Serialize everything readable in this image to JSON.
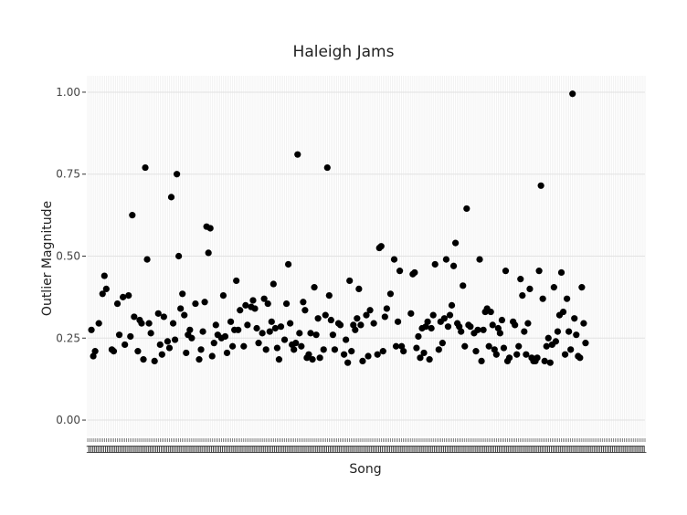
{
  "chart_data": {
    "type": "scatter",
    "title": "Haleigh Jams",
    "xlabel": "Song",
    "ylabel": "Outlier Magnitude",
    "ylim": [
      -0.05,
      1.05
    ],
    "yticks": [
      {
        "value": 0.0,
        "label": "0.00"
      },
      {
        "value": 0.25,
        "label": "0.25"
      },
      {
        "value": 0.5,
        "label": "0.50"
      },
      {
        "value": 0.75,
        "label": "0.75"
      },
      {
        "value": 1.0,
        "label": "1.00"
      }
    ],
    "xlim": [
      0,
      300
    ],
    "x_category_count": 300,
    "x_tick_label_sample": "1",
    "grid": true,
    "legend": "none",
    "series": [
      {
        "name": "songs",
        "color": "#000000",
        "points": [
          [
            2,
            0.275
          ],
          [
            3,
            0.195
          ],
          [
            4,
            0.21
          ],
          [
            6,
            0.295
          ],
          [
            8,
            0.385
          ],
          [
            9,
            0.44
          ],
          [
            10,
            0.4
          ],
          [
            13,
            0.215
          ],
          [
            14,
            0.21
          ],
          [
            16,
            0.355
          ],
          [
            17,
            0.26
          ],
          [
            19,
            0.375
          ],
          [
            20,
            0.23
          ],
          [
            22,
            0.38
          ],
          [
            23,
            0.255
          ],
          [
            24,
            0.625
          ],
          [
            25,
            0.315
          ],
          [
            27,
            0.21
          ],
          [
            28,
            0.305
          ],
          [
            29,
            0.295
          ],
          [
            30,
            0.185
          ],
          [
            31,
            0.77
          ],
          [
            32,
            0.49
          ],
          [
            33,
            0.295
          ],
          [
            34,
            0.265
          ],
          [
            36,
            0.18
          ],
          [
            38,
            0.325
          ],
          [
            39,
            0.23
          ],
          [
            40,
            0.2
          ],
          [
            41,
            0.315
          ],
          [
            43,
            0.24
          ],
          [
            44,
            0.22
          ],
          [
            45,
            0.68
          ],
          [
            46,
            0.295
          ],
          [
            47,
            0.245
          ],
          [
            48,
            0.75
          ],
          [
            49,
            0.5
          ],
          [
            50,
            0.34
          ],
          [
            51,
            0.385
          ],
          [
            52,
            0.32
          ],
          [
            53,
            0.205
          ],
          [
            54,
            0.26
          ],
          [
            55,
            0.275
          ],
          [
            56,
            0.25
          ],
          [
            58,
            0.355
          ],
          [
            60,
            0.185
          ],
          [
            61,
            0.215
          ],
          [
            62,
            0.27
          ],
          [
            63,
            0.36
          ],
          [
            64,
            0.59
          ],
          [
            65,
            0.51
          ],
          [
            66,
            0.585
          ],
          [
            67,
            0.195
          ],
          [
            68,
            0.235
          ],
          [
            69,
            0.29
          ],
          [
            70,
            0.26
          ],
          [
            72,
            0.25
          ],
          [
            73,
            0.38
          ],
          [
            74,
            0.255
          ],
          [
            75,
            0.205
          ],
          [
            77,
            0.3
          ],
          [
            78,
            0.225
          ],
          [
            79,
            0.275
          ],
          [
            80,
            0.425
          ],
          [
            81,
            0.275
          ],
          [
            82,
            0.335
          ],
          [
            84,
            0.225
          ],
          [
            85,
            0.35
          ],
          [
            86,
            0.29
          ],
          [
            88,
            0.345
          ],
          [
            89,
            0.365
          ],
          [
            90,
            0.34
          ],
          [
            91,
            0.28
          ],
          [
            92,
            0.235
          ],
          [
            94,
            0.265
          ],
          [
            95,
            0.37
          ],
          [
            96,
            0.215
          ],
          [
            97,
            0.355
          ],
          [
            98,
            0.27
          ],
          [
            99,
            0.3
          ],
          [
            100,
            0.415
          ],
          [
            101,
            0.28
          ],
          [
            102,
            0.22
          ],
          [
            103,
            0.185
          ],
          [
            104,
            0.285
          ],
          [
            106,
            0.245
          ],
          [
            107,
            0.355
          ],
          [
            108,
            0.475
          ],
          [
            109,
            0.295
          ],
          [
            110,
            0.23
          ],
          [
            111,
            0.215
          ],
          [
            112,
            0.235
          ],
          [
            113,
            0.81
          ],
          [
            114,
            0.265
          ],
          [
            115,
            0.225
          ],
          [
            116,
            0.36
          ],
          [
            117,
            0.335
          ],
          [
            118,
            0.19
          ],
          [
            119,
            0.2
          ],
          [
            120,
            0.265
          ],
          [
            121,
            0.185
          ],
          [
            122,
            0.405
          ],
          [
            123,
            0.26
          ],
          [
            124,
            0.31
          ],
          [
            125,
            0.19
          ],
          [
            127,
            0.215
          ],
          [
            128,
            0.32
          ],
          [
            129,
            0.77
          ],
          [
            130,
            0.38
          ],
          [
            131,
            0.305
          ],
          [
            132,
            0.26
          ],
          [
            133,
            0.215
          ],
          [
            135,
            0.295
          ],
          [
            136,
            0.29
          ],
          [
            138,
            0.2
          ],
          [
            139,
            0.245
          ],
          [
            140,
            0.175
          ],
          [
            141,
            0.425
          ],
          [
            142,
            0.21
          ],
          [
            143,
            0.29
          ],
          [
            144,
            0.275
          ],
          [
            145,
            0.31
          ],
          [
            146,
            0.4
          ],
          [
            147,
            0.29
          ],
          [
            148,
            0.18
          ],
          [
            150,
            0.32
          ],
          [
            151,
            0.195
          ],
          [
            152,
            0.335
          ],
          [
            154,
            0.295
          ],
          [
            156,
            0.2
          ],
          [
            157,
            0.525
          ],
          [
            158,
            0.53
          ],
          [
            159,
            0.21
          ],
          [
            160,
            0.315
          ],
          [
            161,
            0.34
          ],
          [
            163,
            0.385
          ],
          [
            165,
            0.49
          ],
          [
            166,
            0.225
          ],
          [
            167,
            0.3
          ],
          [
            168,
            0.455
          ],
          [
            169,
            0.225
          ],
          [
            170,
            0.21
          ],
          [
            174,
            0.325
          ],
          [
            175,
            0.445
          ],
          [
            176,
            0.45
          ],
          [
            177,
            0.22
          ],
          [
            178,
            0.255
          ],
          [
            179,
            0.19
          ],
          [
            180,
            0.28
          ],
          [
            181,
            0.205
          ],
          [
            182,
            0.285
          ],
          [
            183,
            0.3
          ],
          [
            184,
            0.185
          ],
          [
            185,
            0.28
          ],
          [
            186,
            0.32
          ],
          [
            187,
            0.475
          ],
          [
            189,
            0.215
          ],
          [
            190,
            0.3
          ],
          [
            191,
            0.235
          ],
          [
            192,
            0.31
          ],
          [
            193,
            0.49
          ],
          [
            194,
            0.285
          ],
          [
            195,
            0.32
          ],
          [
            196,
            0.35
          ],
          [
            197,
            0.47
          ],
          [
            198,
            0.54
          ],
          [
            199,
            0.295
          ],
          [
            200,
            0.285
          ],
          [
            201,
            0.27
          ],
          [
            202,
            0.41
          ],
          [
            203,
            0.225
          ],
          [
            204,
            0.645
          ],
          [
            205,
            0.29
          ],
          [
            206,
            0.285
          ],
          [
            208,
            0.265
          ],
          [
            209,
            0.21
          ],
          [
            210,
            0.275
          ],
          [
            211,
            0.49
          ],
          [
            212,
            0.18
          ],
          [
            213,
            0.275
          ],
          [
            214,
            0.33
          ],
          [
            215,
            0.34
          ],
          [
            216,
            0.225
          ],
          [
            217,
            0.33
          ],
          [
            218,
            0.29
          ],
          [
            219,
            0.215
          ],
          [
            220,
            0.2
          ],
          [
            221,
            0.28
          ],
          [
            222,
            0.265
          ],
          [
            223,
            0.305
          ],
          [
            224,
            0.22
          ],
          [
            225,
            0.455
          ],
          [
            226,
            0.18
          ],
          [
            227,
            0.19
          ],
          [
            229,
            0.3
          ],
          [
            230,
            0.29
          ],
          [
            231,
            0.2
          ],
          [
            232,
            0.225
          ],
          [
            233,
            0.43
          ],
          [
            234,
            0.38
          ],
          [
            235,
            0.27
          ],
          [
            236,
            0.2
          ],
          [
            237,
            0.295
          ],
          [
            238,
            0.4
          ],
          [
            239,
            0.19
          ],
          [
            240,
            0.18
          ],
          [
            241,
            0.18
          ],
          [
            242,
            0.19
          ],
          [
            243,
            0.455
          ],
          [
            244,
            0.715
          ],
          [
            245,
            0.37
          ],
          [
            246,
            0.18
          ],
          [
            247,
            0.225
          ],
          [
            248,
            0.25
          ],
          [
            249,
            0.175
          ],
          [
            250,
            0.23
          ],
          [
            251,
            0.405
          ],
          [
            252,
            0.24
          ],
          [
            253,
            0.27
          ],
          [
            254,
            0.32
          ],
          [
            255,
            0.45
          ],
          [
            256,
            0.33
          ],
          [
            257,
            0.2
          ],
          [
            258,
            0.37
          ],
          [
            259,
            0.27
          ],
          [
            260,
            0.215
          ],
          [
            261,
            0.995
          ],
          [
            262,
            0.31
          ],
          [
            263,
            0.26
          ],
          [
            264,
            0.195
          ],
          [
            265,
            0.19
          ],
          [
            266,
            0.405
          ],
          [
            267,
            0.295
          ],
          [
            268,
            0.235
          ]
        ]
      }
    ]
  }
}
